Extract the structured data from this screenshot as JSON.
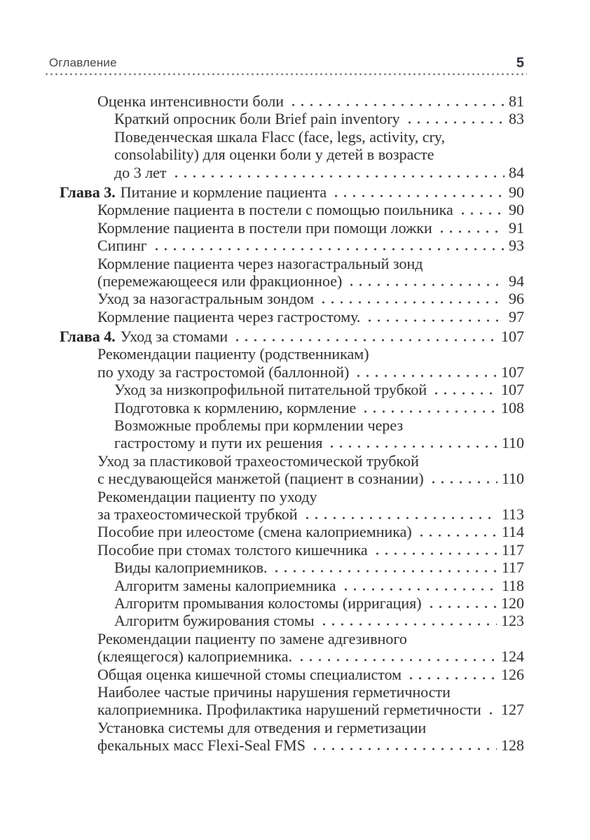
{
  "header": {
    "title": "Оглавление",
    "page_number": "5"
  },
  "colors": {
    "text": "#2f2f2f",
    "chapter": "#222222",
    "header_text": "#474747",
    "header_number": "#30343c",
    "leader_dot": "#3a3a3a",
    "rule_dot": "#6f6f6f",
    "background": "#ffffff"
  },
  "toc": {
    "entries": [
      {
        "level": 1,
        "lines": [
          "Оценка интенсивности боли"
        ],
        "page": "81"
      },
      {
        "level": 2,
        "lines": [
          "Краткий опросник боли Brief pain inventory"
        ],
        "page": "83"
      },
      {
        "level": 2,
        "lines": [
          "Поведенческая шкала Flacc (face, legs, activity, cry,",
          "consolability) для оценки боли у детей в возрасте",
          "до 3 лет"
        ],
        "page": "84"
      },
      {
        "level": 0,
        "prefix": "Глава 3.",
        "lines": [
          "Питание и кормление пациента"
        ],
        "page": "90"
      },
      {
        "level": 1,
        "lines": [
          "Кормление пациента в постели с помощью поильника"
        ],
        "page": "90"
      },
      {
        "level": 1,
        "lines": [
          "Кормление пациента в постели при помощи ложки"
        ],
        "page": "91"
      },
      {
        "level": 1,
        "lines": [
          "Сипинг"
        ],
        "page": "93"
      },
      {
        "level": 1,
        "lines": [
          "Кормление пациента через назогастральный зонд",
          "(перемежающееся или фракционное)"
        ],
        "page": "94"
      },
      {
        "level": 1,
        "lines": [
          "Уход за назогастральным зондом"
        ],
        "page": "96"
      },
      {
        "level": 1,
        "lines": [
          "Кормление пациента через гастростому."
        ],
        "page": "97"
      },
      {
        "level": 0,
        "prefix": "Глава 4.",
        "lines": [
          "Уход за стомами"
        ],
        "page": "107"
      },
      {
        "level": 1,
        "lines": [
          "Рекомендации пациенту (родственникам)",
          "по уходу за гастростомой (баллонной)"
        ],
        "page": "107"
      },
      {
        "level": 2,
        "lines": [
          "Уход за низкопрофильной питательной трубкой"
        ],
        "page": "107"
      },
      {
        "level": 2,
        "lines": [
          "Подготовка к кормлению, кормление"
        ],
        "page": "108"
      },
      {
        "level": 2,
        "lines": [
          "Возможные проблемы при кормлении через",
          "гастростому и пути их решения"
        ],
        "page": "110"
      },
      {
        "level": 1,
        "lines": [
          "Уход за пластиковой трахеостомической трубкой",
          "с несдувающейся манжетой (пациент в сознании)"
        ],
        "page": "110"
      },
      {
        "level": 1,
        "lines": [
          "Рекомендации пациенту по уходу",
          "за трахеостомической трубкой"
        ],
        "page": "113"
      },
      {
        "level": 1,
        "lines": [
          "Пособие при илеостоме (смена калоприемника)"
        ],
        "page": "114"
      },
      {
        "level": 1,
        "lines": [
          "Пособие при стомах толстого кишечника"
        ],
        "page": "117"
      },
      {
        "level": 2,
        "lines": [
          "Виды калоприемников."
        ],
        "page": "117"
      },
      {
        "level": 2,
        "lines": [
          "Алгоритм замены калоприемника"
        ],
        "page": "118"
      },
      {
        "level": 2,
        "lines": [
          "Алгоритм промывания колостомы (ирригация)"
        ],
        "page": "120"
      },
      {
        "level": 2,
        "lines": [
          "Алгоритм бужирования стомы"
        ],
        "page": "123"
      },
      {
        "level": 1,
        "lines": [
          "Рекомендации пациенту по замене адгезивного",
          "(клеящегося) калоприемника."
        ],
        "page": "124"
      },
      {
        "level": 1,
        "lines": [
          "Общая оценка кишечной стомы специалистом"
        ],
        "page": "126"
      },
      {
        "level": 1,
        "lines": [
          "Наиболее частые причины нарушения герметичности",
          "калоприемника. Профилактика нарушений герметичности"
        ],
        "page": "127"
      },
      {
        "level": 1,
        "lines": [
          "Установка системы для отведения и герметизации",
          "фекальных масс Flexi-Seal FMS"
        ],
        "page": "128"
      }
    ]
  }
}
